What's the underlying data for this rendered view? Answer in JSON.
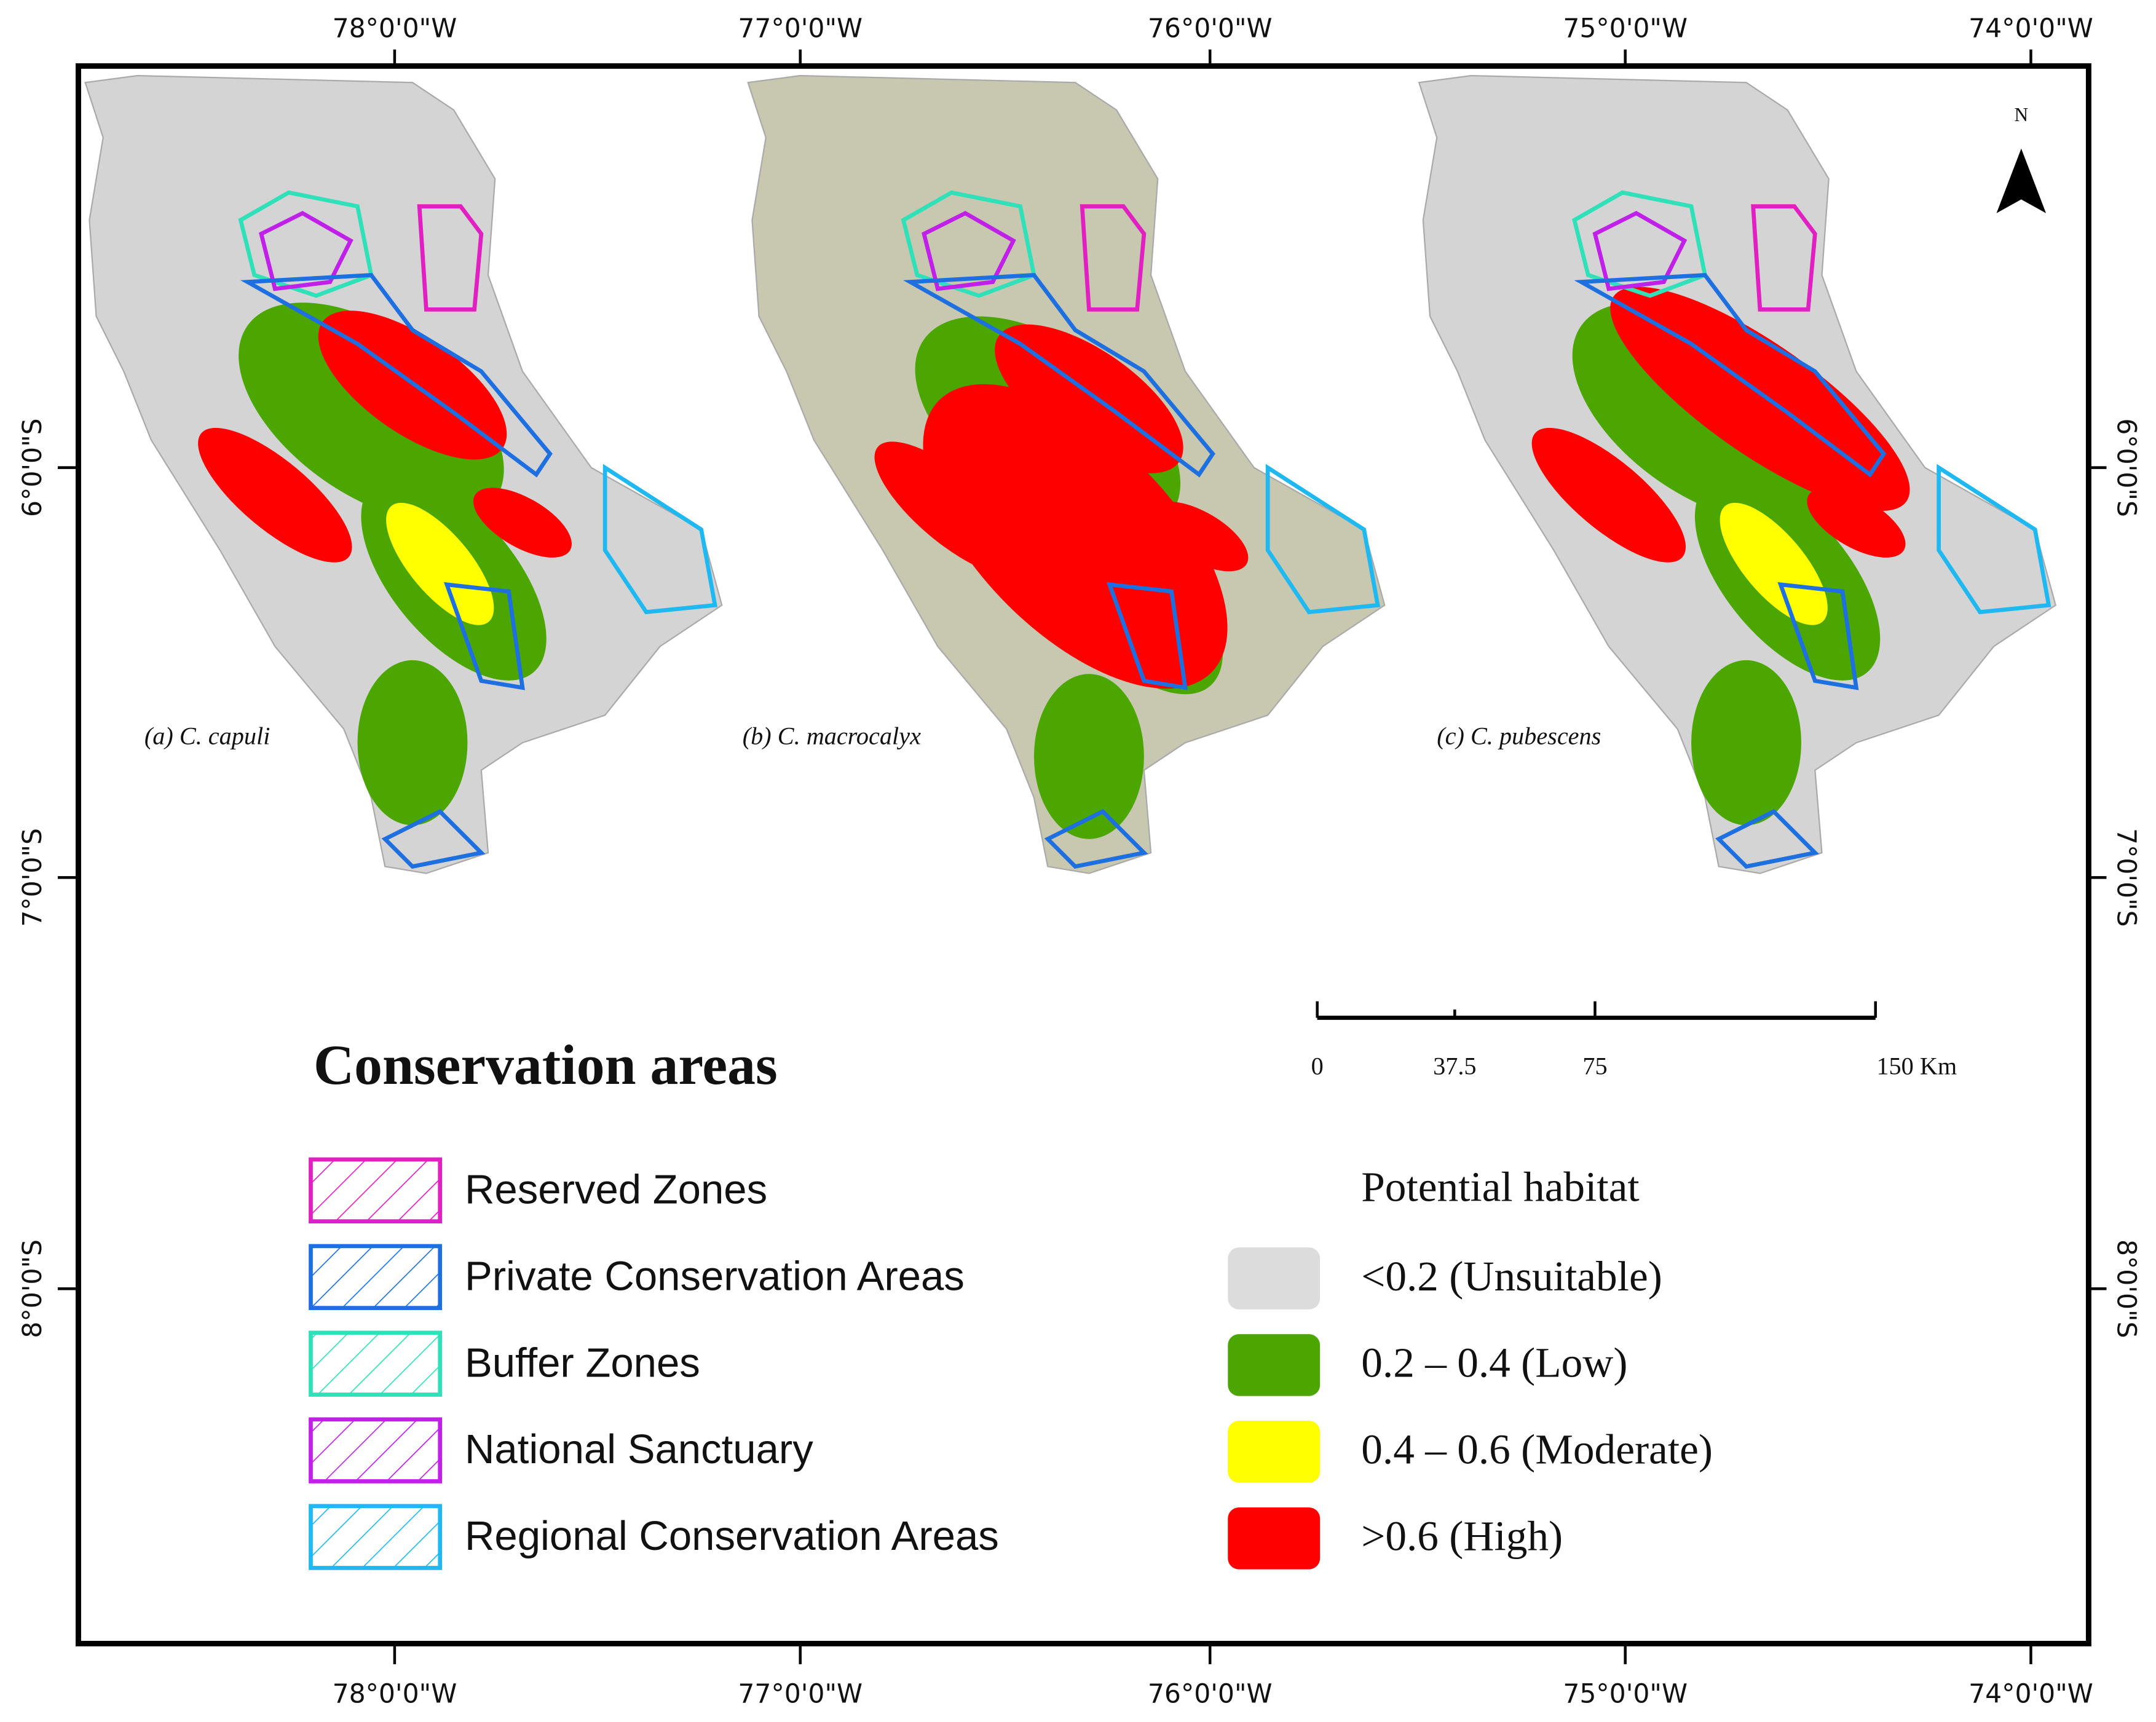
{
  "map": {
    "top_axis_labels": [
      "78°0'0\"W",
      "77°0'0\"W",
      "76°0'0\"W",
      "75°0'0\"W",
      "74°0'0\"W"
    ],
    "bottom_axis_labels": [
      "78°0'0\"W",
      "77°0'0\"W",
      "76°0'0\"W",
      "75°0'0\"W",
      "74°0'0\"W"
    ],
    "left_axis_labels": [
      "6°0'0\"S",
      "7°0'0\"S",
      "8°0'0\"S"
    ],
    "right_axis_labels": [
      "6°0'0\"S",
      "7°0'0\"S",
      "8°0'0\"S"
    ],
    "panels": [
      "(a) C. capuli",
      "(b) C. macrocalyx",
      "(c) C. pubescens"
    ],
    "north": "N",
    "scale_bar": [
      "0",
      "37.5",
      "75",
      "150 Km"
    ]
  },
  "legend": {
    "title": "Conservation areas",
    "items": [
      {
        "label": "Reserved Zones",
        "color": "#e020c0"
      },
      {
        "label": "Private Conservation Areas",
        "color": "#1e6fe0"
      },
      {
        "label": "Buffer Zones",
        "color": "#30e0b8"
      },
      {
        "label": "National Sanctuary",
        "color": "#c020e8"
      },
      {
        "label": "Regional Conservation Areas",
        "color": "#20b8f0"
      }
    ]
  },
  "habitat_legend": {
    "title": "Potential habitat",
    "items": [
      {
        "label": "<0.2 (Unsuitable)",
        "color": "#dcdcdc"
      },
      {
        "label": "0.2 – 0.4 (Low)",
        "color": "#4ca600"
      },
      {
        "label": "0.4 – 0.6 (Moderate)",
        "color": "#ffff00"
      },
      {
        "label": ">0.6 (High)",
        "color": "#ff0000"
      }
    ]
  }
}
